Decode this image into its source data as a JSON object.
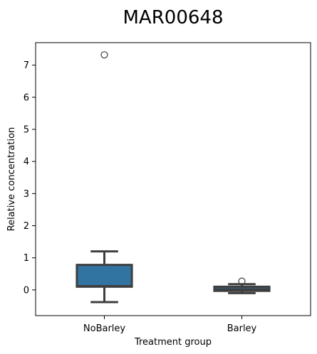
{
  "chart_data": {
    "type": "box",
    "title": "MAR00648",
    "xlabel": "Treatment group",
    "ylabel": "Relative concentration",
    "ylim": [
      -0.8,
      7.7
    ],
    "yticks": [
      0,
      1,
      2,
      3,
      4,
      5,
      6,
      7
    ],
    "categories": [
      "NoBarley",
      "Barley"
    ],
    "boxes": [
      {
        "name": "NoBarley",
        "color": "#3274a1",
        "whislo": -0.38,
        "q1": 0.1,
        "median": 0.12,
        "q3": 0.78,
        "whishi": 1.2,
        "fliers": [
          7.32
        ]
      },
      {
        "name": "Barley",
        "color": "#3274a1",
        "whislo": -0.1,
        "q1": -0.03,
        "median": 0.02,
        "q3": 0.1,
        "whishi": 0.18,
        "fliers": [
          0.27
        ]
      }
    ],
    "grid": false,
    "legend": "none"
  }
}
